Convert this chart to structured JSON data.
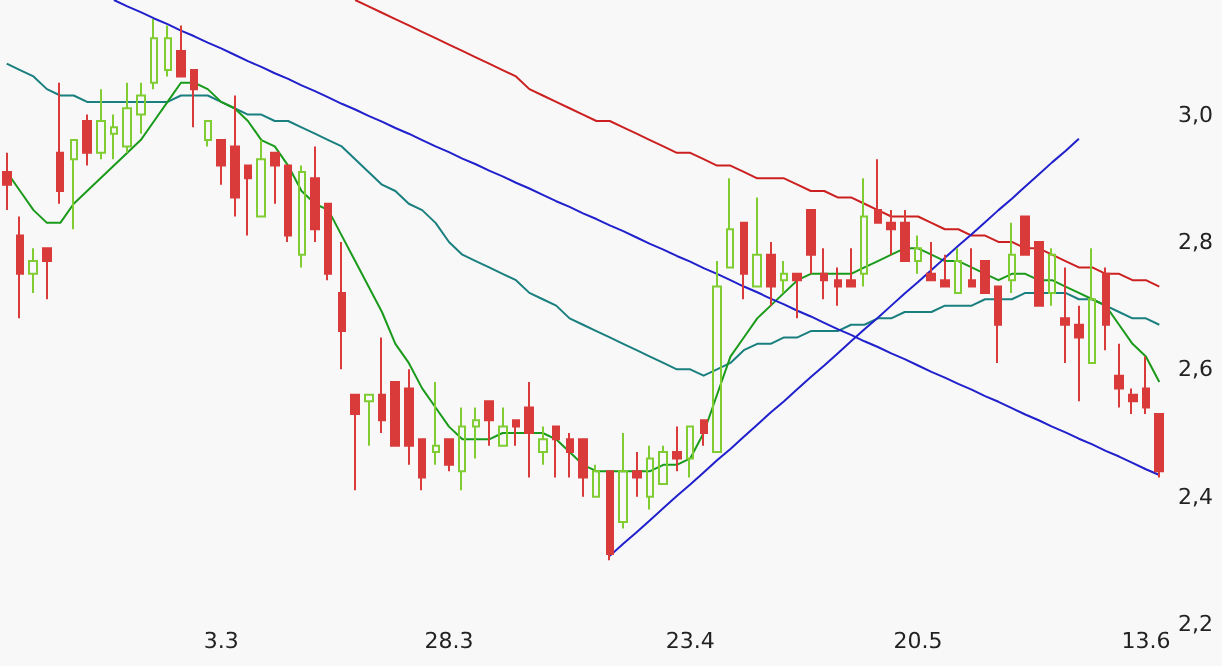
{
  "chart_data": {
    "type": "candlestick",
    "categories": [
      null,
      null,
      null,
      null,
      null,
      null,
      null,
      null,
      null,
      null,
      null,
      null,
      null,
      null,
      null,
      null,
      "3.3",
      null,
      null,
      null,
      null,
      null,
      null,
      null,
      null,
      null,
      null,
      null,
      null,
      null,
      null,
      null,
      null,
      "28.3",
      null,
      null,
      null,
      null,
      null,
      null,
      null,
      null,
      null,
      null,
      null,
      null,
      null,
      null,
      null,
      null,
      null,
      "23.4",
      null,
      null,
      null,
      null,
      null,
      null,
      null,
      null,
      null,
      null,
      null,
      null,
      null,
      null,
      null,
      null,
      "20.5",
      null,
      null,
      null,
      null,
      null,
      null,
      null,
      null,
      null,
      null,
      null,
      null,
      null,
      null,
      null,
      null,
      "13.6",
      null
    ],
    "ohlc": [
      [
        2.91,
        2.94,
        2.85,
        2.89
      ],
      [
        2.81,
        2.84,
        2.68,
        2.75
      ],
      [
        2.75,
        2.79,
        2.72,
        2.77
      ],
      [
        2.79,
        2.79,
        2.71,
        2.77
      ],
      [
        2.94,
        3.05,
        2.86,
        2.88
      ],
      [
        2.93,
        2.96,
        2.82,
        2.96
      ],
      [
        2.99,
        3.0,
        2.92,
        2.94
      ],
      [
        2.94,
        3.04,
        2.93,
        2.99
      ],
      [
        2.97,
        3.0,
        2.93,
        2.98
      ],
      [
        2.95,
        3.05,
        2.94,
        3.01
      ],
      [
        3.0,
        3.05,
        2.97,
        3.03
      ],
      [
        3.05,
        3.15,
        3.04,
        3.12
      ],
      [
        3.07,
        3.14,
        3.06,
        3.12
      ],
      [
        3.1,
        3.14,
        3.06,
        3.06
      ],
      [
        3.07,
        3.07,
        2.98,
        3.04
      ],
      [
        2.96,
        2.99,
        2.95,
        2.99
      ],
      [
        2.96,
        2.96,
        2.89,
        2.92
      ],
      [
        2.95,
        3.03,
        2.84,
        2.87
      ],
      [
        2.92,
        2.92,
        2.81,
        2.9
      ],
      [
        2.84,
        2.96,
        2.84,
        2.93
      ],
      [
        2.94,
        2.94,
        2.86,
        2.92
      ],
      [
        2.92,
        2.92,
        2.8,
        2.81
      ],
      [
        2.78,
        2.92,
        2.76,
        2.91
      ],
      [
        2.9,
        2.95,
        2.8,
        2.82
      ],
      [
        2.86,
        2.86,
        2.74,
        2.75
      ],
      [
        2.72,
        2.8,
        2.6,
        2.66
      ],
      [
        2.56,
        2.56,
        2.41,
        2.53
      ],
      [
        2.55,
        2.56,
        2.48,
        2.56
      ],
      [
        2.56,
        2.65,
        2.5,
        2.52
      ],
      [
        2.58,
        2.58,
        2.48,
        2.48
      ],
      [
        2.57,
        2.6,
        2.45,
        2.48
      ],
      [
        2.49,
        2.49,
        2.41,
        2.43
      ],
      [
        2.47,
        2.58,
        2.45,
        2.48
      ],
      [
        2.49,
        2.49,
        2.44,
        2.45
      ],
      [
        2.44,
        2.54,
        2.41,
        2.51
      ],
      [
        2.51,
        2.54,
        2.46,
        2.52
      ],
      [
        2.55,
        2.55,
        2.48,
        2.52
      ],
      [
        2.48,
        2.54,
        2.48,
        2.51
      ],
      [
        2.52,
        2.52,
        2.48,
        2.51
      ],
      [
        2.54,
        2.58,
        2.43,
        2.5
      ],
      [
        2.47,
        2.51,
        2.45,
        2.49
      ],
      [
        2.51,
        2.51,
        2.43,
        2.49
      ],
      [
        2.49,
        2.5,
        2.43,
        2.47
      ],
      [
        2.49,
        2.49,
        2.4,
        2.43
      ],
      [
        2.4,
        2.45,
        2.4,
        2.44
      ],
      [
        2.44,
        2.44,
        2.3,
        2.31
      ],
      [
        2.36,
        2.5,
        2.35,
        2.44
      ],
      [
        2.44,
        2.47,
        2.4,
        2.43
      ],
      [
        2.4,
        2.48,
        2.38,
        2.46
      ],
      [
        2.42,
        2.48,
        2.42,
        2.47
      ],
      [
        2.47,
        2.51,
        2.44,
        2.46
      ],
      [
        2.46,
        2.51,
        2.43,
        2.51
      ],
      [
        2.52,
        2.52,
        2.48,
        2.5
      ],
      [
        2.47,
        2.77,
        2.47,
        2.73
      ],
      [
        2.76,
        2.9,
        2.76,
        2.82
      ],
      [
        2.83,
        2.83,
        2.71,
        2.75
      ],
      [
        2.73,
        2.87,
        2.73,
        2.78
      ],
      [
        2.78,
        2.8,
        2.7,
        2.73
      ],
      [
        2.74,
        2.77,
        2.72,
        2.75
      ],
      [
        2.75,
        2.75,
        2.68,
        2.74
      ],
      [
        2.85,
        2.85,
        2.75,
        2.78
      ],
      [
        2.75,
        2.79,
        2.71,
        2.74
      ],
      [
        2.74,
        2.76,
        2.7,
        2.73
      ],
      [
        2.74,
        2.79,
        2.73,
        2.73
      ],
      [
        2.75,
        2.9,
        2.73,
        2.84
      ],
      [
        2.85,
        2.93,
        2.83,
        2.83
      ],
      [
        2.83,
        2.85,
        2.78,
        2.82
      ],
      [
        2.83,
        2.85,
        2.77,
        2.77
      ],
      [
        2.77,
        2.81,
        2.75,
        2.79
      ],
      [
        2.75,
        2.8,
        2.74,
        2.74
      ],
      [
        2.74,
        2.78,
        2.73,
        2.73
      ],
      [
        2.72,
        2.79,
        2.72,
        2.77
      ],
      [
        2.74,
        2.79,
        2.73,
        2.73
      ],
      [
        2.77,
        2.77,
        2.72,
        2.72
      ],
      [
        2.73,
        2.73,
        2.61,
        2.67
      ],
      [
        2.74,
        2.83,
        2.72,
        2.78
      ],
      [
        2.84,
        2.84,
        2.78,
        2.78
      ],
      [
        2.8,
        2.8,
        2.7,
        2.7
      ],
      [
        2.72,
        2.79,
        2.7,
        2.78
      ],
      [
        2.68,
        2.76,
        2.61,
        2.67
      ],
      [
        2.67,
        2.7,
        2.55,
        2.65
      ],
      [
        2.61,
        2.79,
        2.61,
        2.71
      ],
      [
        2.75,
        2.76,
        2.63,
        2.67
      ],
      [
        2.59,
        2.64,
        2.54,
        2.57
      ],
      [
        2.56,
        2.57,
        2.53,
        2.55
      ],
      [
        2.57,
        2.62,
        2.53,
        2.54
      ],
      [
        2.53,
        2.53,
        2.43,
        2.44
      ]
    ],
    "colors": [
      "#d93a3a",
      "#d93a3a",
      "#80cc33",
      "#d93a3a",
      "#d93a3a",
      "#80cc33",
      "#d93a3a",
      "#80cc33",
      "#80cc33",
      "#80cc33",
      "#80cc33",
      "#80cc33",
      "#80cc33",
      "#d93a3a",
      "#d93a3a",
      "#80cc33",
      "#d93a3a",
      "#d93a3a",
      "#d93a3a",
      "#80cc33",
      "#d93a3a",
      "#d93a3a",
      "#80cc33",
      "#d93a3a",
      "#d93a3a",
      "#d93a3a",
      "#d93a3a",
      "#80cc33",
      "#d93a3a",
      "#d93a3a",
      "#d93a3a",
      "#d93a3a",
      "#80cc33",
      "#d93a3a",
      "#80cc33",
      "#80cc33",
      "#d93a3a",
      "#80cc33",
      "#d93a3a",
      "#d93a3a",
      "#80cc33",
      "#d93a3a",
      "#d93a3a",
      "#d93a3a",
      "#80cc33",
      "#d93a3a",
      "#80cc33",
      "#d93a3a",
      "#80cc33",
      "#80cc33",
      "#d93a3a",
      "#80cc33",
      "#d93a3a",
      "#80cc33",
      "#80cc33",
      "#d93a3a",
      "#80cc33",
      "#d93a3a",
      "#80cc33",
      "#d93a3a",
      "#d93a3a",
      "#d93a3a",
      "#d93a3a",
      "#d93a3a",
      "#80cc33",
      "#d93a3a",
      "#d93a3a",
      "#d93a3a",
      "#80cc33",
      "#d93a3a",
      "#d93a3a",
      "#80cc33",
      "#d93a3a",
      "#d93a3a",
      "#d93a3a",
      "#80cc33",
      "#d93a3a",
      "#d93a3a",
      "#80cc33",
      "#d93a3a",
      "#d93a3a",
      "#80cc33",
      "#d93a3a",
      "#d93a3a",
      "#d93a3a",
      "#d93a3a",
      "#d93a3a"
    ],
    "series": [
      {
        "type": "line",
        "color": "#1a7f7f",
        "values": [
          3.08,
          3.07,
          3.06,
          3.04,
          3.03,
          3.03,
          3.02,
          3.02,
          3.02,
          3.02,
          3.02,
          3.02,
          3.02,
          3.03,
          3.03,
          3.03,
          3.02,
          3.01,
          3.0,
          3.0,
          2.99,
          2.99,
          2.98,
          2.97,
          2.96,
          2.95,
          2.93,
          2.91,
          2.89,
          2.88,
          2.86,
          2.85,
          2.83,
          2.8,
          2.78,
          2.77,
          2.76,
          2.75,
          2.74,
          2.72,
          2.71,
          2.7,
          2.68,
          2.67,
          2.66,
          2.65,
          2.64,
          2.63,
          2.62,
          2.61,
          2.6,
          2.6,
          2.59,
          2.6,
          2.61,
          2.63,
          2.64,
          2.64,
          2.65,
          2.65,
          2.66,
          2.66,
          2.66,
          2.67,
          2.67,
          2.68,
          2.68,
          2.69,
          2.69,
          2.69,
          2.7,
          2.7,
          2.7,
          2.71,
          2.71,
          2.71,
          2.72,
          2.72,
          2.72,
          2.72,
          2.71,
          2.71,
          2.7,
          2.69,
          2.68,
          2.68,
          2.67
        ]
      },
      {
        "type": "line",
        "color": "#cc2020",
        "values": [
          null,
          null,
          null,
          null,
          null,
          null,
          null,
          null,
          null,
          null,
          null,
          null,
          null,
          null,
          null,
          null,
          null,
          null,
          null,
          null,
          null,
          null,
          null,
          null,
          null,
          null,
          3.18,
          3.17,
          3.16,
          3.15,
          3.14,
          3.13,
          3.12,
          3.11,
          3.1,
          3.09,
          3.08,
          3.07,
          3.06,
          3.04,
          3.03,
          3.02,
          3.01,
          3.0,
          2.99,
          2.99,
          2.98,
          2.97,
          2.96,
          2.95,
          2.94,
          2.94,
          2.93,
          2.92,
          2.92,
          2.91,
          2.9,
          2.9,
          2.9,
          2.89,
          2.88,
          2.88,
          2.87,
          2.87,
          2.86,
          2.85,
          2.84,
          2.84,
          2.84,
          2.83,
          2.82,
          2.82,
          2.81,
          2.81,
          2.8,
          2.8,
          2.79,
          2.79,
          2.78,
          2.77,
          2.76,
          2.76,
          2.75,
          2.75,
          2.74,
          2.74,
          2.73
        ]
      },
      {
        "type": "line",
        "color": "#1a9a1a",
        "values": [
          2.91,
          2.88,
          2.85,
          2.83,
          2.83,
          2.86,
          2.88,
          2.9,
          2.92,
          2.94,
          2.96,
          2.99,
          3.02,
          3.05,
          3.05,
          3.04,
          3.02,
          3.01,
          2.99,
          2.96,
          2.95,
          2.92,
          2.88,
          2.86,
          2.85,
          2.81,
          2.77,
          2.73,
          2.69,
          2.64,
          2.61,
          2.57,
          2.54,
          2.51,
          2.49,
          2.49,
          2.49,
          2.5,
          2.5,
          2.5,
          2.5,
          2.49,
          2.47,
          2.45,
          2.44,
          2.44,
          2.44,
          2.44,
          2.44,
          2.45,
          2.45,
          2.46,
          2.5,
          2.56,
          2.62,
          2.65,
          2.68,
          2.7,
          2.72,
          2.74,
          2.75,
          2.75,
          2.75,
          2.75,
          2.76,
          2.77,
          2.78,
          2.79,
          2.79,
          2.78,
          2.77,
          2.77,
          2.76,
          2.75,
          2.74,
          2.75,
          2.75,
          2.74,
          2.74,
          2.73,
          2.72,
          2.71,
          2.7,
          2.67,
          2.64,
          2.62,
          2.58
        ]
      },
      {
        "type": "line",
        "color": "#2020cc",
        "values": [
          null,
          null,
          null,
          null,
          null,
          null,
          null,
          null,
          3.18,
          3.17,
          3.161,
          3.151,
          3.142,
          3.132,
          3.123,
          3.113,
          3.104,
          3.094,
          3.084,
          3.075,
          3.065,
          3.056,
          3.046,
          3.037,
          3.027,
          3.017,
          3.008,
          2.998,
          2.989,
          2.979,
          2.97,
          2.96,
          2.95,
          2.941,
          2.931,
          2.922,
          2.912,
          2.903,
          2.893,
          2.884,
          2.874,
          2.864,
          2.855,
          2.845,
          2.836,
          2.826,
          2.817,
          2.807,
          2.797,
          2.788,
          2.778,
          2.769,
          2.759,
          2.75,
          2.74,
          2.73,
          2.721,
          2.711,
          2.702,
          2.692,
          2.683,
          2.673,
          2.663,
          2.654,
          2.644,
          2.635,
          2.625,
          2.616,
          2.606,
          2.596,
          2.587,
          2.577,
          2.568,
          2.558,
          2.549,
          2.539,
          2.529,
          2.52,
          2.51,
          2.501,
          2.491,
          2.482,
          2.472,
          2.463,
          2.453,
          2.443,
          2.434
        ]
      },
      {
        "type": "line",
        "color": "#2020cc",
        "values": [
          null,
          null,
          null,
          null,
          null,
          null,
          null,
          null,
          null,
          null,
          null,
          null,
          null,
          null,
          null,
          null,
          null,
          null,
          null,
          null,
          null,
          null,
          null,
          null,
          null,
          null,
          null,
          null,
          null,
          null,
          null,
          null,
          null,
          null,
          null,
          null,
          null,
          null,
          null,
          null,
          null,
          null,
          null,
          null,
          null,
          2.307,
          2.326,
          2.344,
          2.363,
          2.382,
          2.401,
          2.419,
          2.438,
          2.457,
          2.475,
          2.494,
          2.513,
          2.532,
          2.55,
          2.569,
          2.588,
          2.606,
          2.625,
          2.644,
          2.663,
          2.681,
          2.7,
          2.719,
          2.737,
          2.756,
          2.775,
          2.794,
          2.812,
          2.831,
          2.85,
          2.868,
          2.887,
          2.906,
          2.925,
          2.943,
          2.962,
          null,
          null,
          null,
          null,
          null,
          null
        ]
      }
    ],
    "ylim": [
      2.2,
      3.18
    ],
    "yticks": [
      {
        "value": 2.2,
        "label": "2,2"
      },
      {
        "value": 2.4,
        "label": "2,4"
      },
      {
        "value": 2.6,
        "label": "2,6"
      },
      {
        "value": 2.8,
        "label": "2,8"
      },
      {
        "value": 3.0,
        "label": "3,0"
      }
    ],
    "marker": "none"
  }
}
